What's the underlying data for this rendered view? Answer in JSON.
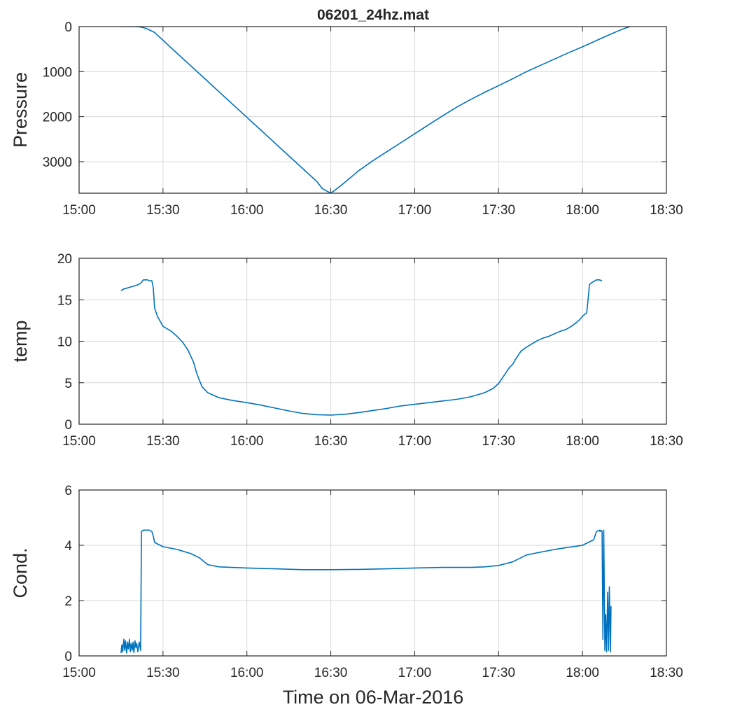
{
  "figure": {
    "title": "06201_24hz.mat",
    "xlabel": "Time on 06-Mar-2016",
    "line_color": "#0072BD",
    "grid_color": "#d9d9d9"
  },
  "chart_data": [
    {
      "type": "line",
      "title": "06201_24hz.mat",
      "xlabel": "",
      "ylabel": "Pressure",
      "y_reversed": true,
      "xlim": [
        900,
        1110
      ],
      "ylim": [
        0,
        3700
      ],
      "xticks": [
        900,
        930,
        960,
        990,
        1020,
        1050,
        1080,
        1110
      ],
      "xtick_labels": [
        "15:00",
        "15:30",
        "16:00",
        "16:30",
        "17:00",
        "17:30",
        "18:00",
        "18:30"
      ],
      "yticks": [
        0,
        1000,
        2000,
        3000
      ],
      "ytick_labels": [
        "0",
        "1000",
        "2000",
        "3000"
      ],
      "grid": true,
      "series": [
        {
          "name": "Pressure",
          "x": [
            915,
            920,
            922,
            924,
            927,
            935,
            945,
            955,
            965,
            975,
            985,
            987,
            990,
            993,
            995,
            1000,
            1005,
            1010,
            1015,
            1020,
            1025,
            1030,
            1035,
            1040,
            1045,
            1050,
            1055,
            1060,
            1065,
            1070,
            1075,
            1080,
            1085,
            1090,
            1093,
            1095,
            1097
          ],
          "values": [
            0,
            0,
            10,
            40,
            130,
            590,
            1160,
            1730,
            2300,
            2870,
            3440,
            3600,
            3700,
            3560,
            3460,
            3200,
            2980,
            2780,
            2580,
            2380,
            2180,
            1980,
            1790,
            1620,
            1460,
            1310,
            1160,
            1000,
            860,
            720,
            580,
            450,
            310,
            170,
            90,
            40,
            0
          ]
        }
      ]
    },
    {
      "type": "line",
      "xlabel": "",
      "ylabel": "temp",
      "xlim": [
        900,
        1110
      ],
      "ylim": [
        0,
        20
      ],
      "xticks": [
        900,
        930,
        960,
        990,
        1020,
        1050,
        1080,
        1110
      ],
      "xtick_labels": [
        "15:00",
        "15:30",
        "16:00",
        "16:30",
        "17:00",
        "17:30",
        "18:00",
        "18:30"
      ],
      "yticks": [
        0,
        5,
        10,
        15,
        20
      ],
      "ytick_labels": [
        "0",
        "5",
        "10",
        "15",
        "20"
      ],
      "grid": true,
      "series": [
        {
          "name": "temp",
          "x": [
            915,
            916,
            917,
            918,
            920,
            921,
            922,
            923,
            924,
            924.5,
            925,
            925.5,
            926,
            926.5,
            927,
            928,
            930,
            933,
            935,
            937,
            939,
            941,
            942,
            943,
            944,
            946,
            950,
            955,
            960,
            965,
            970,
            975,
            980,
            985,
            990,
            995,
            1000,
            1005,
            1010,
            1015,
            1020,
            1025,
            1030,
            1035,
            1040,
            1045,
            1048,
            1050,
            1052,
            1053,
            1054,
            1055,
            1056,
            1057,
            1058,
            1060,
            1062,
            1064,
            1066,
            1068,
            1070,
            1072,
            1074,
            1076,
            1078,
            1079,
            1080,
            1081,
            1081.5,
            1082,
            1082.5,
            1083,
            1084,
            1085,
            1086,
            1087
          ],
          "values": [
            16.1,
            16.3,
            16.4,
            16.5,
            16.7,
            16.8,
            17.0,
            17.4,
            17.4,
            17.4,
            17.3,
            17.3,
            17.3,
            16.5,
            14.0,
            13.0,
            11.8,
            11.2,
            10.6,
            9.9,
            8.9,
            7.4,
            6.2,
            5.3,
            4.5,
            3.8,
            3.2,
            2.85,
            2.6,
            2.3,
            1.95,
            1.6,
            1.3,
            1.15,
            1.1,
            1.2,
            1.4,
            1.65,
            1.9,
            2.2,
            2.4,
            2.6,
            2.8,
            3.0,
            3.3,
            3.8,
            4.3,
            4.9,
            5.9,
            6.4,
            6.9,
            7.2,
            7.8,
            8.3,
            8.8,
            9.3,
            9.7,
            10.1,
            10.4,
            10.6,
            10.9,
            11.2,
            11.4,
            11.8,
            12.3,
            12.6,
            13.0,
            13.3,
            13.4,
            15.0,
            16.8,
            17.0,
            17.2,
            17.4,
            17.4,
            17.3
          ]
        }
      ]
    },
    {
      "type": "line",
      "xlabel": "Time on 06-Mar-2016",
      "ylabel": "Cond.",
      "xlim": [
        900,
        1110
      ],
      "ylim": [
        0,
        6
      ],
      "xticks": [
        900,
        930,
        960,
        990,
        1020,
        1050,
        1080,
        1110
      ],
      "xtick_labels": [
        "15:00",
        "15:30",
        "16:00",
        "16:30",
        "17:00",
        "17:30",
        "18:00",
        "18:30"
      ],
      "yticks": [
        0,
        2,
        4,
        6
      ],
      "ytick_labels": [
        "0",
        "2",
        "4",
        "6"
      ],
      "grid": true,
      "series": [
        {
          "name": "Cond.",
          "x": [
            915,
            915.3,
            915.6,
            916,
            916.3,
            916.6,
            917,
            917.3,
            917.6,
            918,
            918.3,
            918.6,
            919,
            919.3,
            919.6,
            920,
            920.3,
            920.6,
            921,
            921.5,
            922,
            922.3,
            923,
            924,
            925,
            926,
            926.5,
            927,
            928,
            930,
            935,
            940,
            943,
            946,
            950,
            960,
            970,
            980,
            990,
            1000,
            1010,
            1020,
            1030,
            1040,
            1045,
            1050,
            1055,
            1060,
            1070,
            1075,
            1078,
            1080,
            1082,
            1084,
            1085,
            1086,
            1086.3,
            1086.6,
            1087,
            1087.3,
            1087.6,
            1088,
            1088.3,
            1088.6,
            1089,
            1089.3,
            1089.6,
            1090,
            1090.2
          ],
          "values": [
            0.1,
            0.4,
            0.15,
            0.6,
            0.2,
            0.55,
            0.1,
            0.5,
            0.25,
            0.6,
            0.15,
            0.45,
            0.2,
            0.5,
            0.12,
            0.55,
            0.3,
            0.45,
            0.15,
            0.5,
            0.2,
            4.5,
            4.55,
            4.55,
            4.55,
            4.5,
            4.35,
            4.1,
            4.05,
            3.95,
            3.85,
            3.7,
            3.55,
            3.3,
            3.22,
            3.18,
            3.15,
            3.12,
            3.12,
            3.13,
            3.15,
            3.18,
            3.2,
            3.2,
            3.22,
            3.27,
            3.4,
            3.65,
            3.85,
            3.93,
            3.97,
            4.0,
            4.1,
            4.2,
            4.5,
            4.55,
            4.5,
            4.55,
            4.5,
            0.6,
            4.55,
            0.2,
            1.5,
            0.15,
            2.3,
            0.2,
            2.5,
            0.15,
            1.8
          ]
        }
      ]
    }
  ]
}
